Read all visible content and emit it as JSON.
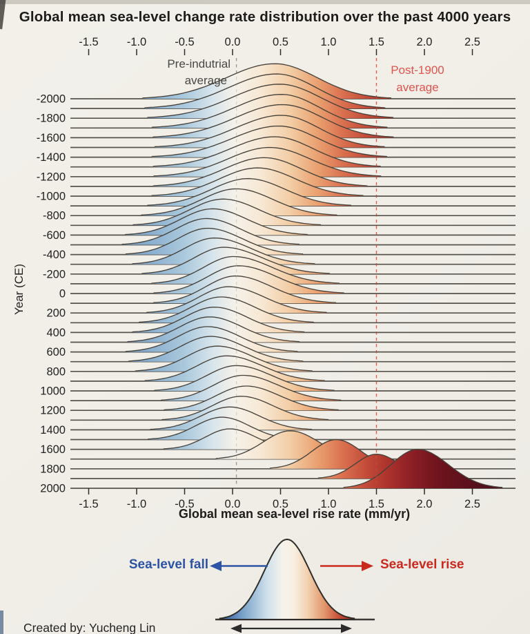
{
  "title": "Global mean sea-level change rate distribution over the past 4000 years",
  "axes": {
    "x_tick_labels": [
      "-1.5",
      "-1.0",
      "-0.5",
      "0.0",
      "0.5",
      "1.0",
      "1.5",
      "2.0",
      "2.5"
    ],
    "x_tick_values": [
      -1.5,
      -1.0,
      -0.5,
      0.0,
      0.5,
      1.0,
      1.5,
      2.0,
      2.5
    ],
    "x_label": "Global mean sea-level rise rate (mm/yr)",
    "y_label": "Year (CE)",
    "y_tick_values": [
      -2000,
      -1800,
      -1600,
      -1400,
      -1200,
      -1000,
      -800,
      -600,
      -400,
      -200,
      0,
      200,
      400,
      600,
      800,
      1000,
      1200,
      1400,
      1600,
      1800,
      2000
    ],
    "xlim": [
      -1.69,
      2.95
    ],
    "ylim_years": [
      -2000,
      2000
    ]
  },
  "annotations": {
    "preindustrial": {
      "line1": "Pre-indutrial",
      "line2": "average",
      "value": 0.04,
      "color": "#474644",
      "line_color": "#9b968e"
    },
    "post1900": {
      "line1": "Post-1900",
      "line2": "average",
      "value": 1.5,
      "color": "#e0544c",
      "line_color": "#d95c50"
    }
  },
  "legend": {
    "fall_label": "Sea-level fall",
    "rise_label": "Sea-level rise",
    "fall_color": "#2d54a4",
    "rise_color": "#ca291d",
    "bell_gradient": [
      [
        0,
        "#2c58a2"
      ],
      [
        0.18,
        "#7ea6cb"
      ],
      [
        0.35,
        "#cfe0eb"
      ],
      [
        0.47,
        "#f6f3ec"
      ],
      [
        0.55,
        "#f8efe1"
      ],
      [
        0.65,
        "#f2d2b2"
      ],
      [
        0.78,
        "#e2956a"
      ],
      [
        0.89,
        "#c64d37"
      ],
      [
        1,
        "#9c2318"
      ]
    ]
  },
  "credit": "Created by: Yucheng Lin",
  "colors": {
    "background": "#f1eee8",
    "baseline": "#56534d",
    "ridge_stroke": "#46413a",
    "tick": "#2b2b2b",
    "fill_gradient_value_color": [
      [
        -1.8,
        "#6490bd"
      ],
      [
        -0.9,
        "#86abcd"
      ],
      [
        -0.5,
        "#abc9dd"
      ],
      [
        -0.2,
        "#d8e5ec"
      ],
      [
        0.02,
        "#f5f1e9"
      ],
      [
        0.3,
        "#f7e8d4"
      ],
      [
        0.6,
        "#f3cda5"
      ],
      [
        0.9,
        "#e99e6e"
      ],
      [
        1.15,
        "#da7050"
      ],
      [
        1.4,
        "#c24b39"
      ],
      [
        1.62,
        "#ac322c"
      ],
      [
        1.85,
        "#8e2026"
      ],
      [
        2.15,
        "#6e131d"
      ],
      [
        2.6,
        "#53101a"
      ]
    ]
  },
  "chart_data": {
    "type": "area",
    "subtype": "ridgeline",
    "title": "Global mean sea-level change rate distribution over the past 4000 years",
    "xlabel": "Global mean sea-level rise rate (mm/yr)",
    "ylabel": "Year (CE)",
    "x_unit": "mm/yr",
    "row_step_years": 100,
    "grid": "horizontal-baselines",
    "legend_position": "bottom",
    "ridge_columns": [
      "year",
      "mean_mm_yr",
      "sigma_left",
      "sigma_right",
      "peak_height_rows"
    ],
    "ridges": [
      [
        -2000,
        0.44,
        0.5,
        0.44,
        3.6
      ],
      [
        -1900,
        0.46,
        0.5,
        0.41,
        3.55
      ],
      [
        -1800,
        0.49,
        0.5,
        0.43,
        3.5
      ],
      [
        -1700,
        0.51,
        0.49,
        0.4,
        3.45
      ],
      [
        -1600,
        0.52,
        0.49,
        0.42,
        3.4
      ],
      [
        -1500,
        0.51,
        0.48,
        0.39,
        3.3
      ],
      [
        -1400,
        0.48,
        0.48,
        0.41,
        3.2
      ],
      [
        -1300,
        0.44,
        0.46,
        0.4,
        3.1
      ],
      [
        -1200,
        0.39,
        0.44,
        0.42,
        3.0
      ],
      [
        -1100,
        0.33,
        0.42,
        0.39,
        2.95
      ],
      [
        -1000,
        0.26,
        0.4,
        0.4,
        2.9
      ],
      [
        -900,
        0.16,
        0.38,
        0.39,
        2.8
      ],
      [
        -800,
        0.04,
        0.36,
        0.38,
        2.75
      ],
      [
        -700,
        -0.1,
        0.34,
        0.37,
        2.7
      ],
      [
        -600,
        -0.21,
        0.33,
        0.36,
        2.7
      ],
      [
        -500,
        -0.27,
        0.32,
        0.35,
        2.7
      ],
      [
        -400,
        -0.26,
        0.31,
        0.36,
        2.7
      ],
      [
        -300,
        -0.19,
        0.31,
        0.38,
        2.7
      ],
      [
        -200,
        -0.09,
        0.31,
        0.4,
        2.75
      ],
      [
        -100,
        0.01,
        0.31,
        0.4,
        2.8
      ],
      [
        0,
        0.06,
        0.32,
        0.4,
        2.85
      ],
      [
        100,
        0.03,
        0.31,
        0.38,
        2.8
      ],
      [
        200,
        -0.04,
        0.31,
        0.37,
        2.7
      ],
      [
        300,
        -0.12,
        0.31,
        0.35,
        2.65
      ],
      [
        400,
        -0.19,
        0.31,
        0.34,
        2.6
      ],
      [
        500,
        -0.24,
        0.31,
        0.34,
        2.6
      ],
      [
        600,
        -0.26,
        0.31,
        0.34,
        2.6
      ],
      [
        700,
        -0.23,
        0.31,
        0.35,
        2.6
      ],
      [
        800,
        -0.16,
        0.31,
        0.36,
        2.6
      ],
      [
        900,
        -0.06,
        0.31,
        0.37,
        2.6
      ],
      [
        1000,
        0.04,
        0.31,
        0.37,
        2.6
      ],
      [
        1100,
        0.11,
        0.31,
        0.37,
        2.6
      ],
      [
        1200,
        0.14,
        0.31,
        0.35,
        2.5
      ],
      [
        1300,
        0.09,
        0.3,
        0.33,
        2.45
      ],
      [
        1400,
        -0.03,
        0.3,
        0.31,
        2.35
      ],
      [
        1500,
        -0.11,
        0.28,
        0.29,
        2.3
      ],
      [
        1600,
        -0.03,
        0.25,
        0.27,
        2.1
      ],
      [
        1700,
        0.6,
        0.28,
        0.3,
        2.9
      ],
      [
        1800,
        1.08,
        0.25,
        0.26,
        3.0
      ],
      [
        1900,
        1.5,
        0.22,
        0.24,
        2.5
      ],
      [
        2000,
        1.93,
        0.28,
        0.32,
        4.0
      ]
    ]
  }
}
